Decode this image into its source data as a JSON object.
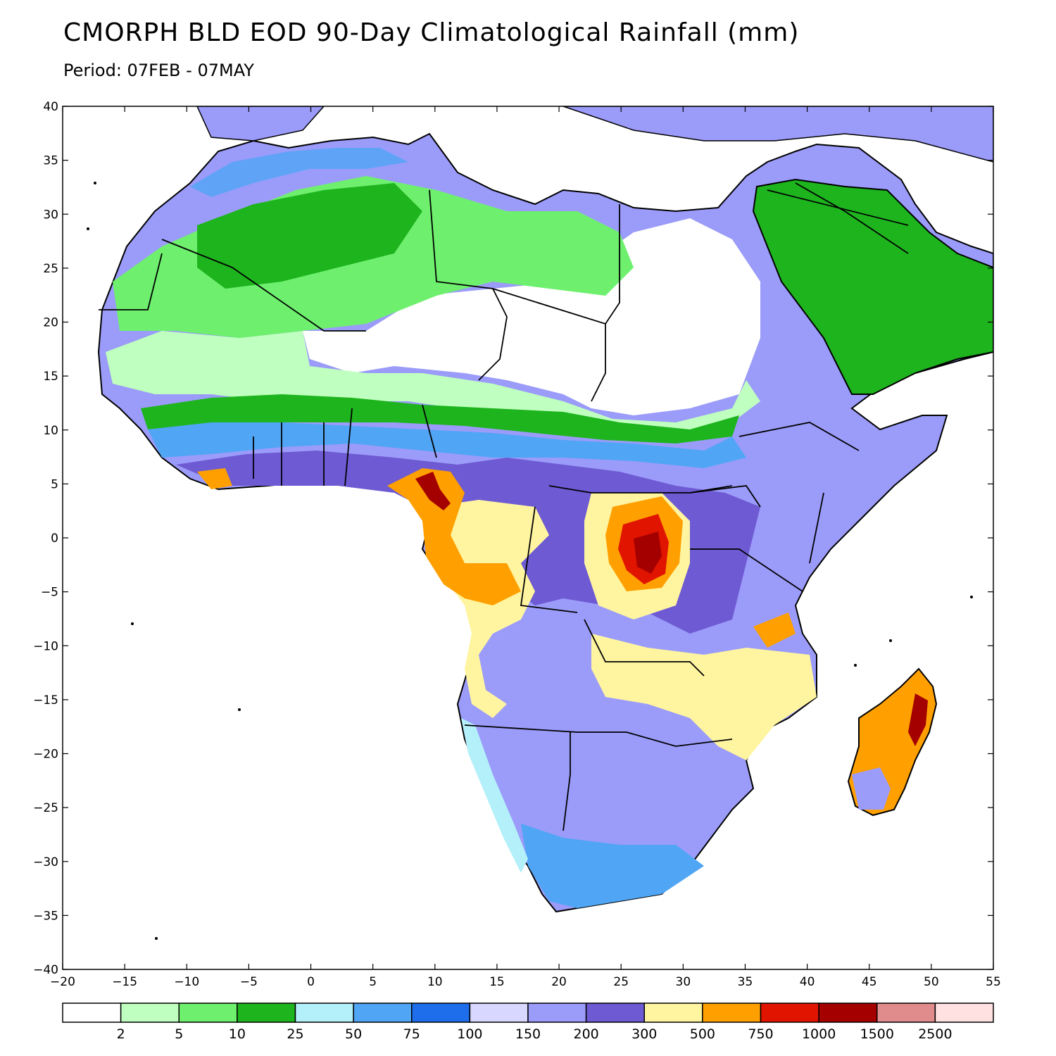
{
  "title": "CMORPH BLD EOD 90-Day Climatological Rainfall (mm)",
  "subtitle": "Period: 07FEB - 07MAY",
  "map": {
    "region": "Africa",
    "x_ticks": [
      "−20",
      "−15",
      "−10",
      "−5",
      "0",
      "5",
      "10",
      "15",
      "20",
      "25",
      "30",
      "35",
      "40",
      "45",
      "50",
      "55"
    ],
    "y_ticks": [
      "40",
      "35",
      "30",
      "25",
      "20",
      "15",
      "10",
      "5",
      "0",
      "−5",
      "−10",
      "−15",
      "−20",
      "−25",
      "−30",
      "−35",
      "−40"
    ],
    "lon_range": [
      -20,
      55
    ],
    "lat_range": [
      -40,
      40
    ]
  },
  "legend": {
    "colors": [
      "#ffffff",
      "#bfffbf",
      "#6ef06e",
      "#1eb41e",
      "#b4f0fa",
      "#50a5f5",
      "#1e6eeb",
      "#d7d7ff",
      "#9b9bfa",
      "#6e5ad2",
      "#fff5a0",
      "#ffa000",
      "#e11400",
      "#a50000",
      "#e18c8c",
      "#ffe1e1"
    ],
    "labels": [
      "2",
      "5",
      "10",
      "25",
      "50",
      "75",
      "100",
      "150",
      "200",
      "300",
      "500",
      "750",
      "1000",
      "1500",
      "2500"
    ]
  }
}
